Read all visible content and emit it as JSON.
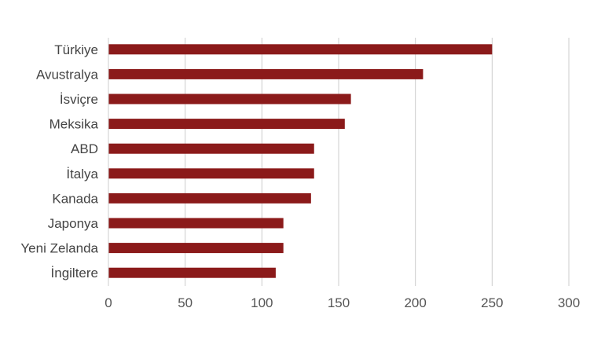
{
  "chart_data": {
    "type": "bar",
    "orientation": "horizontal",
    "categories": [
      "Türkiye",
      "Avustralya",
      "İsviçre",
      "Meksika",
      "ABD",
      "İtalya",
      "Kanada",
      "Japonya",
      "Yeni Zelanda",
      "İngiltere"
    ],
    "values": [
      250,
      205,
      158,
      154,
      134,
      134,
      132,
      114,
      114,
      109
    ],
    "xlim": [
      0,
      300
    ],
    "x_ticks": [
      0,
      50,
      100,
      150,
      200,
      250,
      300
    ],
    "grid": "vertical",
    "bar_color": "#8B1A1A",
    "title": "",
    "xlabel": "",
    "ylabel": ""
  }
}
